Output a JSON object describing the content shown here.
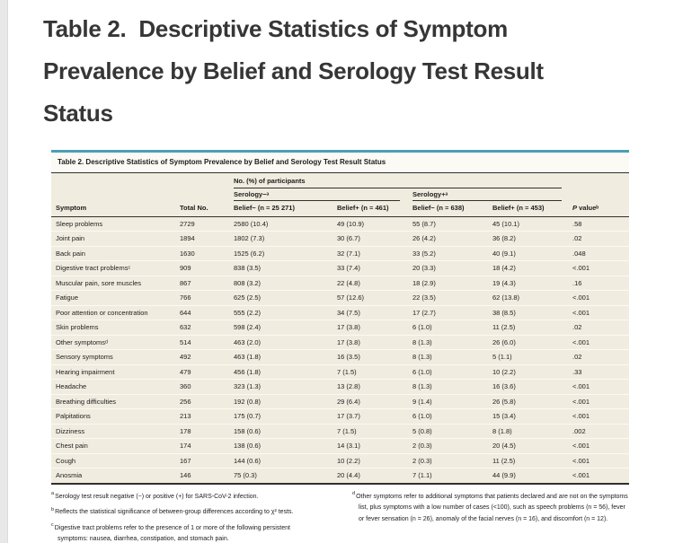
{
  "theme": {
    "accent_teal": "#4b9fb5",
    "table_bg": "#f0ede0",
    "title_bar_bg": "#fbfaf5",
    "rule_dark": "#2f2f2f",
    "row_separator": "#fbfaf3",
    "heading_color": "#363636",
    "left_strip": "#e8e8e8",
    "text_color": "#1c1c1c"
  },
  "heading": "Table 2.  Descriptive Statistics of Symptom\nPrevalence by Belief and Serology Test Result\nStatus",
  "table": {
    "title": "Table 2. Descriptive Statistics of Symptom Prevalence by Belief and Serology Test Result Status",
    "group_header": "No. (%) of participants",
    "serology_neg": "Serology−ᵃ",
    "serology_pos": "Serology+ᵃ",
    "columns": [
      "Symptom",
      "Total No.",
      "Belief− (n = 25 271)",
      "Belief+ (n = 461)",
      "Belief− (n = 638)",
      "Belief+ (n = 453)"
    ],
    "p_italic": "P",
    "p_rest": " valueᵇ",
    "rows": [
      [
        "Sleep problems",
        "2729",
        "2580 (10.4)",
        "49 (10.9)",
        "55 (8.7)",
        "45 (10.1)",
        ".58"
      ],
      [
        "Joint pain",
        "1894",
        "1802 (7.3)",
        "30 (6.7)",
        "26 (4.2)",
        "36 (8.2)",
        ".02"
      ],
      [
        "Back pain",
        "1630",
        "1525 (6.2)",
        "32 (7.1)",
        "33 (5.2)",
        "40 (9.1)",
        ".048"
      ],
      [
        "Digestive tract problemsᶜ",
        "909",
        "838 (3.5)",
        "33 (7.4)",
        "20 (3.3)",
        "18 (4.2)",
        "<.001"
      ],
      [
        "Muscular pain, sore muscles",
        "867",
        "808 (3.2)",
        "22 (4.8)",
        "18 (2.9)",
        "19 (4.3)",
        ".16"
      ],
      [
        "Fatigue",
        "766",
        "625 (2.5)",
        "57 (12.6)",
        "22 (3.5)",
        "62 (13.8)",
        "<.001"
      ],
      [
        "Poor attention or concentration",
        "644",
        "555 (2.2)",
        "34 (7.5)",
        "17 (2.7)",
        "38 (8.5)",
        "<.001"
      ],
      [
        "Skin problems",
        "632",
        "598 (2.4)",
        "17 (3.8)",
        "6 (1.0)",
        "11 (2.5)",
        ".02"
      ],
      [
        "Other symptomsᵈ",
        "514",
        "463 (2.0)",
        "17 (3.8)",
        "8 (1.3)",
        "26 (6.0)",
        "<.001"
      ],
      [
        "Sensory symptoms",
        "492",
        "463 (1.8)",
        "16 (3.5)",
        "8 (1.3)",
        "5 (1.1)",
        ".02"
      ],
      [
        "Hearing impairment",
        "479",
        "456 (1.8)",
        "7 (1.5)",
        "6 (1.0)",
        "10 (2.2)",
        ".33"
      ],
      [
        "Headache",
        "360",
        "323 (1.3)",
        "13 (2.8)",
        "8 (1.3)",
        "16 (3.6)",
        "<.001"
      ],
      [
        "Breathing difficulties",
        "256",
        "192 (0.8)",
        "29 (6.4)",
        "9 (1.4)",
        "26 (5.8)",
        "<.001"
      ],
      [
        "Palpitations",
        "213",
        "175 (0.7)",
        "17 (3.7)",
        "6 (1.0)",
        "15 (3.4)",
        "<.001"
      ],
      [
        "Dizziness",
        "178",
        "158 (0.6)",
        "7 (1.5)",
        "5 (0.8)",
        "8 (1.8)",
        ".002"
      ],
      [
        "Chest pain",
        "174",
        "138 (0.6)",
        "14 (3.1)",
        "2 (0.3)",
        "20 (4.5)",
        "<.001"
      ],
      [
        "Cough",
        "167",
        "144 (0.6)",
        "10 (2.2)",
        "2 (0.3)",
        "11 (2.5)",
        "<.001"
      ],
      [
        "Anosmia",
        "146",
        "75 (0.3)",
        "20 (4.4)",
        "7 (1.1)",
        "44 (9.9)",
        "<.001"
      ]
    ]
  },
  "footnotes": {
    "left": [
      {
        "marker": "a",
        "text": "Serology test result negative (−) or positive (+) for SARS-CoV-2 infection."
      },
      {
        "marker": "b",
        "text": "Reflects the statistical significance of between-group differences according to χ² tests."
      },
      {
        "marker": "c",
        "text": "Digestive tract problems refer to the presence of 1 or more of the following persistent symptoms: nausea, diarrhea, constipation, and stomach pain."
      }
    ],
    "right": [
      {
        "marker": "d",
        "text": "Other symptoms refer to additional symptoms that patients declared and are not on the symptoms list, plus symptoms with a low number of cases (<100), such as speech problems (n = 56), fever or fever sensation (n = 26), anomaly of the facial nerves (n = 16), and discomfort (n = 12)."
      }
    ]
  }
}
